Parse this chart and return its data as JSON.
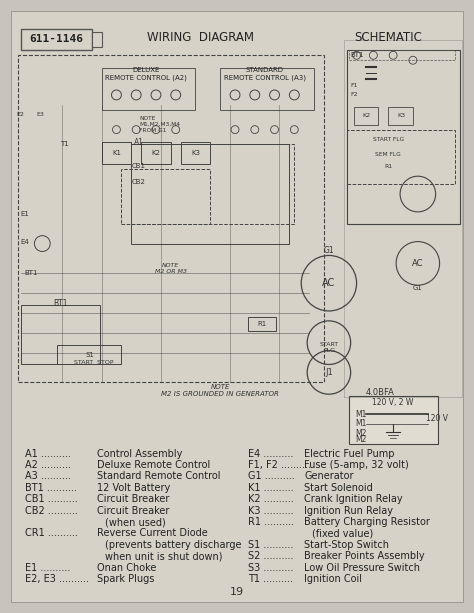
{
  "bg_color": "#c8c4bb",
  "page_color": "#d6d2c8",
  "title_top": "WIRING  DIAGRAM",
  "title_schematic": "SCHEMATIC",
  "part_number": "611-1146",
  "deluxe_label": "DELUXE\nREMOTE CONTROL (A2)",
  "standard_label": "STANDARD\nREMOTE CONTROL (A3)",
  "legend_left": [
    [
      "A1",
      "Control Assembly"
    ],
    [
      "A2",
      "Deluxe Remote Control"
    ],
    [
      "A3",
      "Standard Remote Control"
    ],
    [
      "BT1",
      "12 Volt Battery"
    ],
    [
      "CB1",
      "Circuit Breaker"
    ],
    [
      "CB2",
      "Circuit Breaker"
    ],
    [
      "",
      "(when used)"
    ],
    [
      "CR1",
      "Reverse Current Diode"
    ],
    [
      "",
      "(prevents battery discharge"
    ],
    [
      "",
      "when unit is shut down)"
    ],
    [
      "E1",
      "Onan Choke"
    ],
    [
      "E2, E3",
      "Spark Plugs"
    ]
  ],
  "legend_right": [
    [
      "E4",
      "Electric Fuel Pump"
    ],
    [
      "F1, F2",
      "Fuse (5-amp, 32 volt)"
    ],
    [
      "G1",
      "Generator"
    ],
    [
      "K1",
      "Start Solenoid"
    ],
    [
      "K2",
      "Crank Ignition Relay"
    ],
    [
      "K3",
      "Ignition Run Relay"
    ],
    [
      "R1",
      "Battery Charging Resistor"
    ],
    [
      "",
      "(fixed value)"
    ],
    [
      "S1",
      "Start-Stop Switch"
    ],
    [
      "S2",
      "Breaker Points Assembly"
    ],
    [
      "S3",
      "Low Oil Pressure Switch"
    ],
    [
      "T1",
      "Ignition Coil"
    ]
  ],
  "page_number": "19",
  "note_text": "NOTE\nM2 IS GROUNDED IN GENERATOR",
  "box_label": "4.0BFA",
  "box_content": [
    "120 V, 2 W",
    "M1",
    "M1      120 V",
    "M2",
    "M2"
  ],
  "font_size_legend": 7.0,
  "font_size_title": 8.5,
  "font_size_labels": 6.0
}
